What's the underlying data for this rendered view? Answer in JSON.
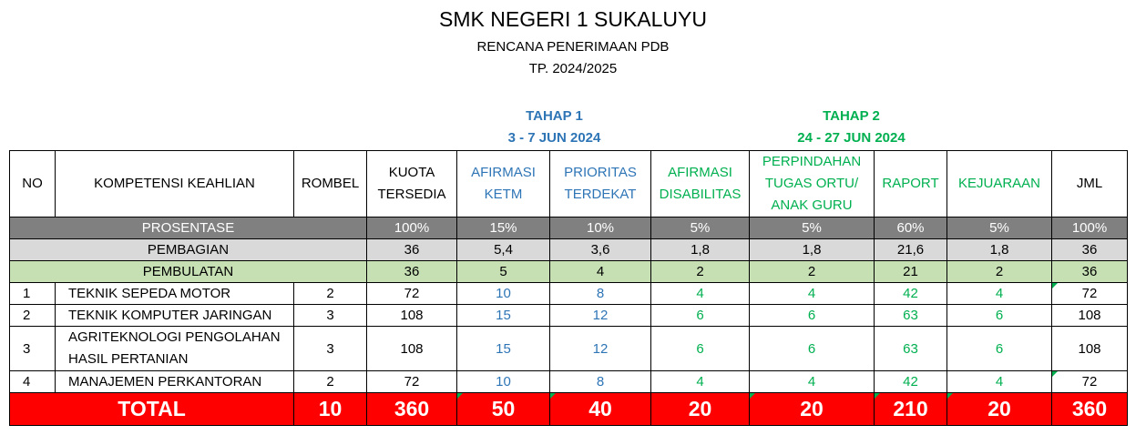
{
  "header": {
    "school": "SMK NEGERI 1 SUKALUYU",
    "plan": "RENCANA PENERIMAAN PDB",
    "year": "TP. 2024/2025"
  },
  "phases": [
    {
      "title": "TAHAP 1",
      "dates": "3 - 7 JUN 2024",
      "color": "#2e75b6"
    },
    {
      "title": "TAHAP 2",
      "dates": "24 - 27 JUN 2024",
      "color": "#00b050"
    }
  ],
  "columns": {
    "no": "NO",
    "kompetensi": "KOMPETENSI KEAHLIAN",
    "rombel": "ROMBEL",
    "kuota": "KUOTA TERSEDIA",
    "afirmasi_ketm": "AFIRMASI KETM",
    "prioritas": "PRIORITAS TERDEKAT",
    "afirmasi_dis": "AFIRMASI DISABILITAS",
    "perpindahan": "PERPINDAHAN TUGAS ORTU/ ANAK GURU",
    "raport": "RAPORT",
    "kejuaraan": "KEJUARAAN",
    "jml": "JML"
  },
  "prosentase": {
    "label": "PROSENTASE",
    "values": [
      "100%",
      "15%",
      "10%",
      "5%",
      "5%",
      "60%",
      "5%",
      "100%"
    ]
  },
  "pembagian": {
    "label": "PEMBAGIAN",
    "values": [
      "36",
      "5,4",
      "3,6",
      "1,8",
      "1,8",
      "21,6",
      "1,8",
      "36"
    ]
  },
  "pembulatan": {
    "label": "PEMBULATAN",
    "values": [
      "36",
      "5",
      "4",
      "2",
      "2",
      "21",
      "2",
      "36"
    ]
  },
  "rows": [
    {
      "no": "1",
      "name": "TEKNIK SEPEDA MOTOR",
      "rombel": "2",
      "kuota": "72",
      "ketm": "10",
      "prioritas": "8",
      "disabilitas": "4",
      "perpindahan": "4",
      "raport": "42",
      "kejuaraan": "4",
      "jml": "72"
    },
    {
      "no": "2",
      "name": "TEKNIK KOMPUTER JARINGAN",
      "rombel": "3",
      "kuota": "108",
      "ketm": "15",
      "prioritas": "12",
      "disabilitas": "6",
      "perpindahan": "6",
      "raport": "63",
      "kejuaraan": "6",
      "jml": "108"
    },
    {
      "no": "3",
      "name": "AGRITEKNOLOGI PENGOLAHAN HASIL PERTANIAN",
      "rombel": "3",
      "kuota": "108",
      "ketm": "15",
      "prioritas": "12",
      "disabilitas": "6",
      "perpindahan": "6",
      "raport": "63",
      "kejuaraan": "6",
      "jml": "108"
    },
    {
      "no": "4",
      "name": "MANAJEMEN PERKANTORAN",
      "rombel": "2",
      "kuota": "72",
      "ketm": "10",
      "prioritas": "8",
      "disabilitas": "4",
      "perpindahan": "4",
      "raport": "42",
      "kejuaraan": "4",
      "jml": "72"
    }
  ],
  "total": {
    "label": "TOTAL",
    "rombel": "10",
    "kuota": "360",
    "ketm": "50",
    "prioritas": "40",
    "disabilitas": "20",
    "perpindahan": "20",
    "raport": "210",
    "kejuaraan": "20",
    "jml": "360"
  },
  "colors": {
    "blue": "#2e75b6",
    "green": "#00b050",
    "total_bg": "#ff0000",
    "prosentase_bg": "#808080",
    "pembagian_bg": "#d9d9d9",
    "pembulatan_bg": "#c6e0b4"
  }
}
